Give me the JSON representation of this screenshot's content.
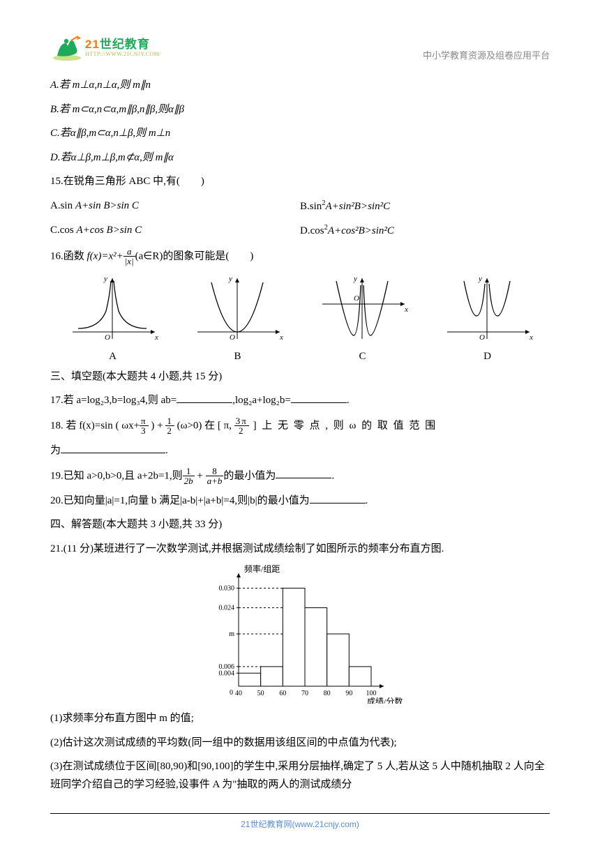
{
  "header": {
    "logo_cn_main": "世纪",
    "logo_cn_accent": "21",
    "logo_cn_suffix": "教育",
    "logo_en": "HTTP://WWW.21CNJY.COM/",
    "right_text": "中小学教育资源及组卷应用平台"
  },
  "body": {
    "q14_A": "A.若 m⊥α,n⊥α,则 m∥n",
    "q14_B": "B.若 m⊂α,n⊂α,m∥β,n∥β,则α∥β",
    "q14_C": "C.若α∥β,m⊂α,n⊥β,则 m⊥n",
    "q14_D": "D.若α⊥β,m⊥β,m⊄α,则 m∥α",
    "q15_stem": "15.在锐角三角形 ABC 中,有(　　)",
    "q15_A_pre": "A.sin ",
    "q15_A_rest": "A+sin B>sin C",
    "q15_B_pre": "B.sin",
    "q15_B_rest": "A+sin²B>sin²C",
    "q15_C_pre": "C.cos ",
    "q15_C_rest": "A+cos B>sin C",
    "q15_D_pre": "D.cos",
    "q15_D_rest": "A+cos²B>sin²C",
    "q16_prefix": "16.函数 ",
    "q16_func": "f(x)=x²+",
    "q16_frac_num": "a",
    "q16_frac_den": "|x|",
    "q16_suffix": "(a∈R)的图象可能是(　　)",
    "graph_labels": [
      "A",
      "B",
      "C",
      "D"
    ],
    "section3": "三、填空题(本大题共 4 小题,共 15 分)",
    "q17_a": "17.若 a=log₂3,b=log₃4,则 ab=",
    "q17_b": ",log₂a+log₂b=",
    "q17_c": ".",
    "q18_a": "18. 若 f(x)=sin ( ωx+",
    "q18_f1n": "π",
    "q18_f1d": "3",
    "q18_b": " ) + ",
    "q18_f2n": "1",
    "q18_f2d": "2",
    "q18_c": " (ω>0) 在 [ π, ",
    "q18_f3n": "3π",
    "q18_f3d": "2",
    "q18_d": " ] 上 无 零 点 , 则 ω 的 取 值 范 围",
    "q18_e": "为",
    "q18_f": ".",
    "q19_a": "19.已知 a>0,b>0,且 a+2b=1,则",
    "q19_f1n": "1",
    "q19_f1d": "2b",
    "q19_mid": " + ",
    "q19_f2n": "8",
    "q19_f2d": "a+b",
    "q19_b": "的最小值为",
    "q19_c": ".",
    "q20_a": "20.已知向量|a|=1,向量 b 满足|a-b|+|a+b|=4,则|b|的最小值为",
    "q20_b": ".",
    "section4": "四、解答题(本大题共 3 小题,共 33 分)",
    "q21_stem": "21.(11 分)某班进行了一次数学测试,并根据测试成绩绘制了如图所示的频率分布直方图.",
    "q21_1": "(1)求频率分布直方图中 m 的值;",
    "q21_2": "(2)估计这次测试成绩的平均数(同一组中的数据用该组区间的中点值为代表);",
    "q21_3": "(3)在测试成绩位于区间[80,90)和[90,100]的学生中,采用分层抽样,确定了 5 人,若从这 5 人中随机抽取 2 人向全班同学介绍自己的学习经验,设事件 A 为\"抽取的两人的测试成绩分"
  },
  "graphs": {
    "axis_color": "#000",
    "curve_color": "#000",
    "curve_width": 1.3,
    "A": {
      "type": "rational-even",
      "asymptote_x": 0
    },
    "B": {
      "type": "quartic-even"
    },
    "C": {
      "type": "w-shape"
    },
    "D": {
      "type": "cusp-u"
    }
  },
  "histogram": {
    "ylabel": "频率/组距",
    "xlabel": "成绩/分数",
    "x_ticks": [
      "40",
      "50",
      "60",
      "70",
      "80",
      "90",
      "100"
    ],
    "y_ticks": [
      {
        "label": "0.004",
        "v": 0.004
      },
      {
        "label": "0.006",
        "v": 0.006
      },
      {
        "label": "m",
        "v": 0.016
      },
      {
        "label": "0.024",
        "v": 0.024
      },
      {
        "label": "0.030",
        "v": 0.03
      }
    ],
    "bars": [
      {
        "x": 40,
        "h": 0.004
      },
      {
        "x": 50,
        "h": 0.006
      },
      {
        "x": 60,
        "h": 0.03
      },
      {
        "x": 70,
        "h": 0.024
      },
      {
        "x": 80,
        "h": 0.016
      },
      {
        "x": 90,
        "h": 0.006
      }
    ],
    "bar_fill": "#ffffff",
    "bar_stroke": "#000000",
    "axis_color": "#000000",
    "dash_color": "#000000"
  },
  "footer": {
    "text": "21世纪教育网(www.21cnjy.com)"
  }
}
